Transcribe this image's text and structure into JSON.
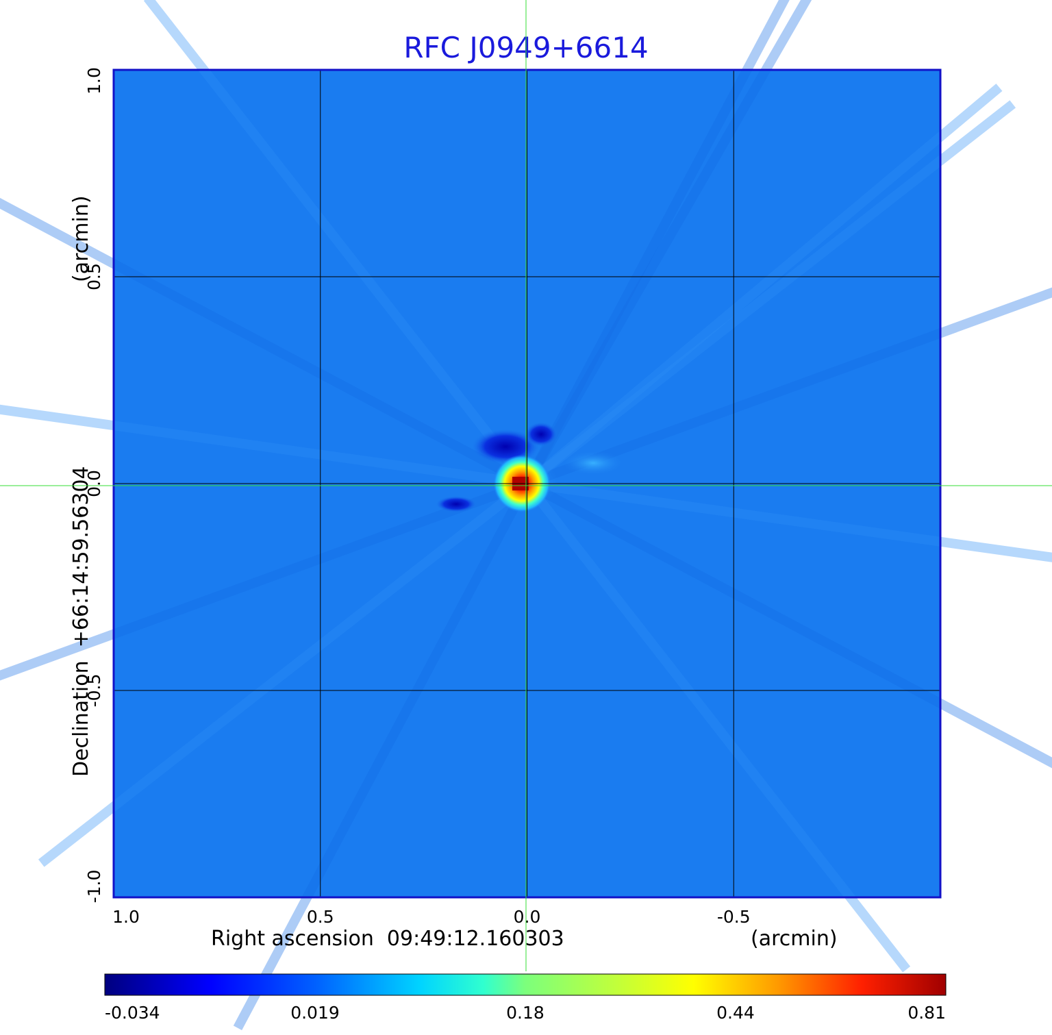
{
  "chart_data": {
    "type": "heatmap",
    "title": "RFC J0949+6614",
    "xlabel": "Right ascension  09:49:12.160303",
    "xlabel_unit": "(arcmin)",
    "ylabel": "Declination  +66:14:59.56304",
    "ylabel_unit": "(arcmin)",
    "x_ticks": [
      "1.0",
      "0.5",
      "0.0",
      "-0.5"
    ],
    "x_tick_values": [
      1.0,
      0.5,
      0.0,
      -0.5
    ],
    "y_ticks": [
      "1.0",
      "0.5",
      "0.0",
      "-0.5",
      "-1.0"
    ],
    "y_tick_values": [
      1.0,
      0.5,
      0.0,
      -0.5,
      -1.0
    ],
    "xlim": [
      1.0,
      -1.0
    ],
    "ylim": [
      -1.0,
      1.0
    ],
    "grid": true,
    "crosshair": [
      0.0,
      0.0
    ],
    "colorbar": {
      "labels": [
        "-0.034",
        "0.019",
        "0.18",
        "0.44",
        "0.81"
      ],
      "colormap": "jet",
      "orientation": "horizontal"
    },
    "peak": {
      "x": 0.0,
      "y": 0.0,
      "value": 0.81
    },
    "background_level": 0.0,
    "colors": {
      "title": "#1a1adc",
      "frame": "#1212c8",
      "crosshair": "#33dd33",
      "grid": "#000000",
      "background_map": "#1a7cf0"
    }
  }
}
